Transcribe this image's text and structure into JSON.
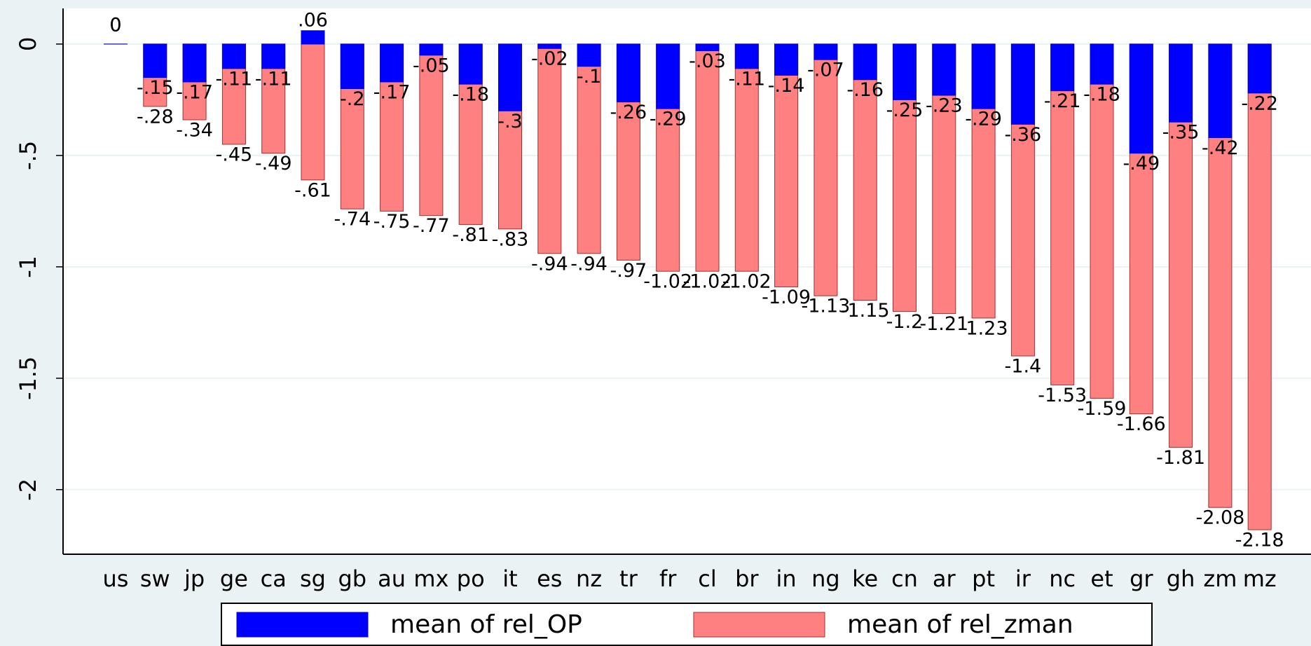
{
  "chart_data": {
    "type": "bar",
    "mode": "overlay",
    "categories": [
      "us",
      "sw",
      "jp",
      "ge",
      "ca",
      "sg",
      "gb",
      "au",
      "mx",
      "po",
      "it",
      "es",
      "nz",
      "tr",
      "fr",
      "cl",
      "br",
      "in",
      "ng",
      "ke",
      "cn",
      "ar",
      "pt",
      "ir",
      "nc",
      "et",
      "gr",
      "gh",
      "zm",
      "mz"
    ],
    "series": [
      {
        "name": "mean of rel_OP",
        "color": "#0000ff",
        "values": [
          0,
          -0.15,
          -0.17,
          -0.11,
          -0.11,
          0.06,
          -0.2,
          -0.17,
          -0.05,
          -0.18,
          -0.3,
          -0.02,
          -0.1,
          -0.26,
          -0.29,
          -0.03,
          -0.11,
          -0.14,
          -0.07,
          -0.16,
          -0.25,
          -0.23,
          -0.29,
          -0.36,
          -0.21,
          -0.18,
          -0.49,
          -0.35,
          -0.42,
          -0.22
        ],
        "value_labels": [
          "0",
          "-.15",
          "-.17",
          "-.11",
          "-.11",
          ".06",
          "-.2",
          "-.17",
          "-.05",
          "-.18",
          "-.3",
          "-.02",
          "-.1",
          "-.26",
          "-.29",
          "-.03",
          "-.11",
          "-.14",
          "-.07",
          "-.16",
          "-.25",
          "-.23",
          "-.29",
          "-.36",
          "-.21",
          "-.18",
          "-.49",
          "-.35",
          "-.42",
          "-.22"
        ]
      },
      {
        "name": "mean of rel_zman",
        "color": "#ff8080",
        "values": [
          0,
          -0.28,
          -0.34,
          -0.45,
          -0.49,
          -0.61,
          -0.74,
          -0.75,
          -0.77,
          -0.81,
          -0.83,
          -0.94,
          -0.94,
          -0.97,
          -1.02,
          -1.02,
          -1.02,
          -1.09,
          -1.13,
          -1.15,
          -1.2,
          -1.21,
          -1.23,
          -1.4,
          -1.53,
          -1.59,
          -1.66,
          -1.81,
          -2.08,
          -2.18
        ],
        "value_labels": [
          "0",
          "-.28",
          "-.34",
          "-.45",
          "-.49",
          "-.61",
          "-.74",
          "-.75",
          "-.77",
          "-.81",
          "-.83",
          "-.94",
          "-.94",
          "-.97",
          "-1.02",
          "-1.02",
          "-1.02",
          "-1.09",
          "-1.13",
          "-1.15",
          "-1.2",
          "-1.21",
          "-1.23",
          "-1.4",
          "-1.53",
          "-1.59",
          "-1.66",
          "-1.81",
          "-2.08",
          "-2.18"
        ]
      }
    ],
    "ylim": [
      -2.29,
      0.16
    ],
    "yticks": [
      0,
      {
        "value": -0.5,
        "label": "-.5"
      },
      -1,
      {
        "value": -1.5,
        "label": "-1.5"
      },
      -2
    ],
    "grid": true,
    "legend": "bottom"
  }
}
